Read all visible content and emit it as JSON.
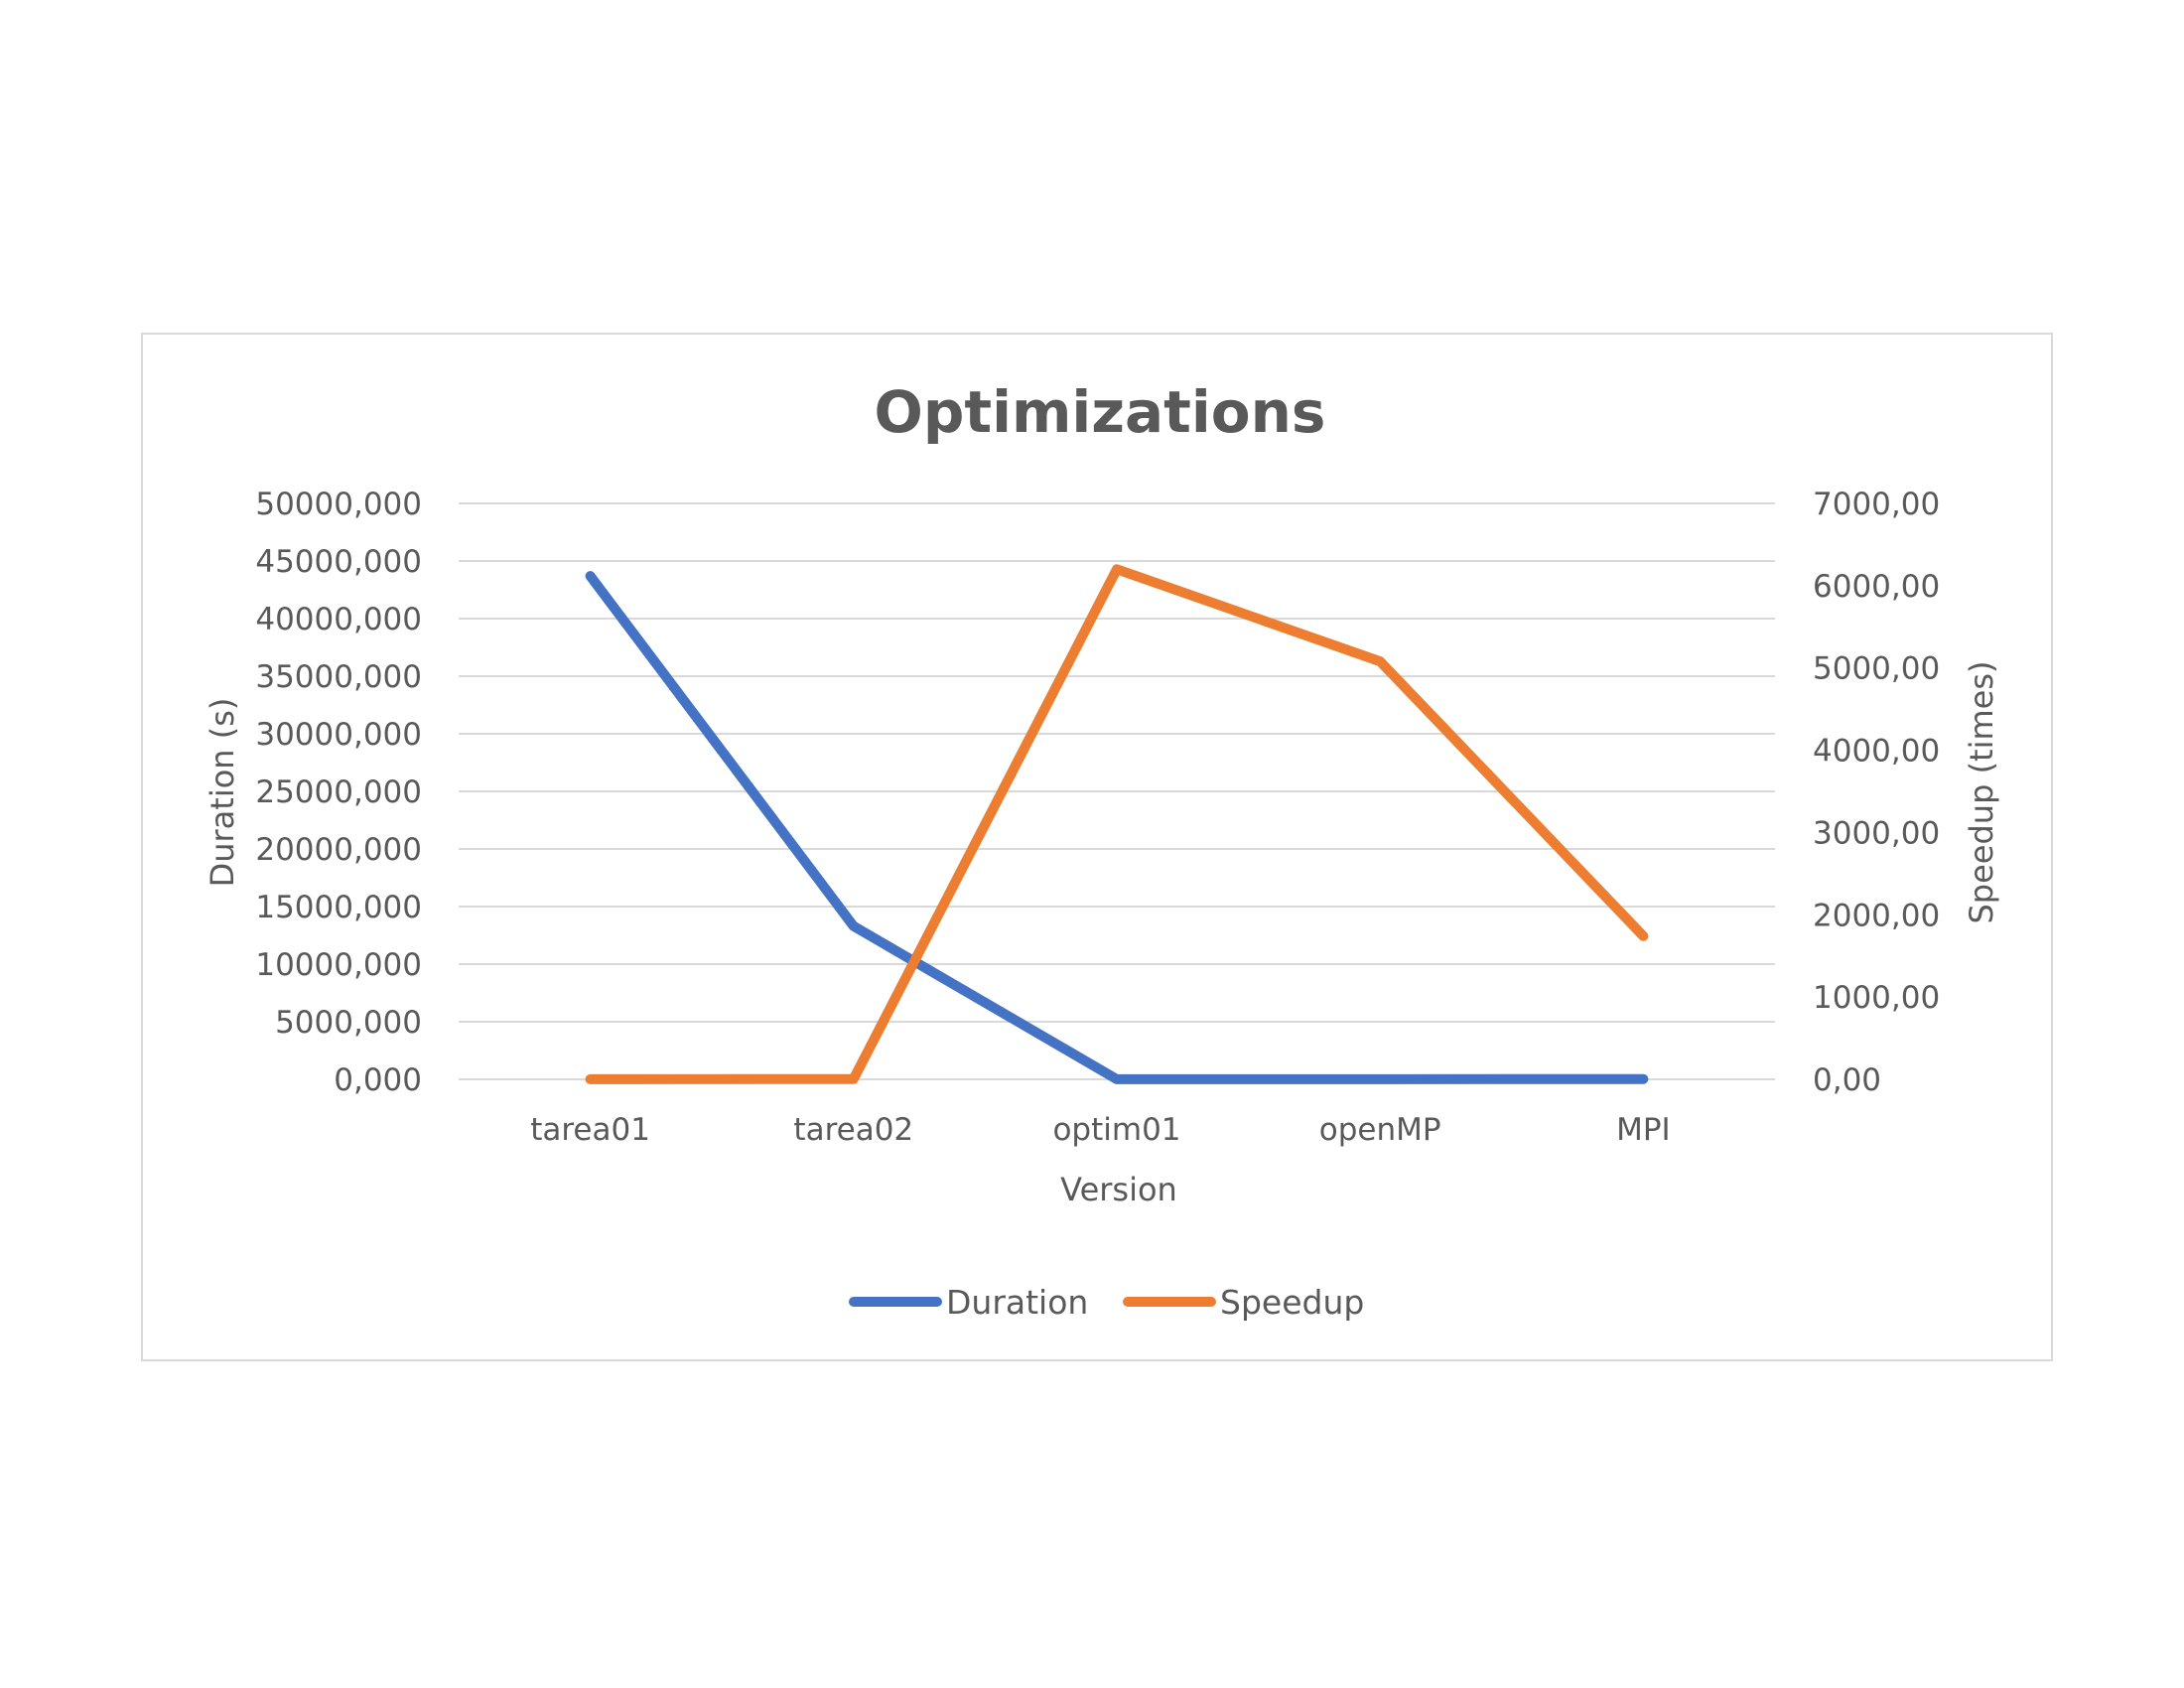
{
  "chart_data": {
    "type": "line",
    "title": "Optimizations",
    "xlabel": "Version",
    "ylabel": "Duration (s)",
    "y2label": "Speedup (times)",
    "categories": [
      "tarea01",
      "tarea02",
      "optim01",
      "openMP",
      "MPI"
    ],
    "ylim": [
      0,
      50000
    ],
    "y2lim": [
      0,
      7000
    ],
    "y_ticks": [
      "0,000",
      "5000,000",
      "10000,000",
      "15000,000",
      "20000,000",
      "25000,000",
      "30000,000",
      "35000,000",
      "40000,000",
      "45000,000",
      "50000,000"
    ],
    "y2_ticks": [
      "0,00",
      "1000,00",
      "2000,00",
      "3000,00",
      "4000,00",
      "5000,00",
      "6000,00",
      "7000,00"
    ],
    "grid": true,
    "legend_position": "bottom",
    "series": [
      {
        "name": "Duration",
        "axis": "left",
        "color": "#4472c4",
        "values": [
          43700,
          13300,
          7,
          9,
          25
        ]
      },
      {
        "name": "Speedup",
        "axis": "right",
        "color": "#ed7d31",
        "values": [
          1,
          3.3,
          6200,
          5080,
          1740
        ]
      }
    ]
  }
}
